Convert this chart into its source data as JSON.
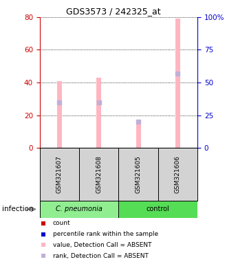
{
  "title": "GDS3573 / 242325_at",
  "samples": [
    "GSM321607",
    "GSM321608",
    "GSM321605",
    "GSM321606"
  ],
  "bar_values": [
    41,
    43,
    17,
    79
  ],
  "rank_absent_values": [
    35,
    35,
    20,
    57
  ],
  "bar_color_absent": "#FFB6C1",
  "rank_absent_color": "#C0B0D8",
  "left_axis_color": "#CC0000",
  "right_axis_color": "#0000CC",
  "ylim_left": [
    0,
    80
  ],
  "ylim_right": [
    0,
    100
  ],
  "yticks_left": [
    0,
    20,
    40,
    60,
    80
  ],
  "yticks_right": [
    0,
    25,
    50,
    75,
    100
  ],
  "ytick_labels_right": [
    "0",
    "25",
    "50",
    "75",
    "100%"
  ],
  "group1_label": "C. pneumonia",
  "group2_label": "control",
  "group1_color": "#90EE90",
  "group2_color": "#55DD55",
  "group_label_text": "infection",
  "legend_items": [
    {
      "color": "#CC0000",
      "marker": "s",
      "label": "count"
    },
    {
      "color": "#0000CC",
      "marker": "s",
      "label": "percentile rank within the sample"
    },
    {
      "color": "#FFB6C1",
      "marker": "s",
      "label": "value, Detection Call = ABSENT"
    },
    {
      "color": "#C0B0D8",
      "marker": "s",
      "label": "rank, Detection Call = ABSENT"
    }
  ]
}
